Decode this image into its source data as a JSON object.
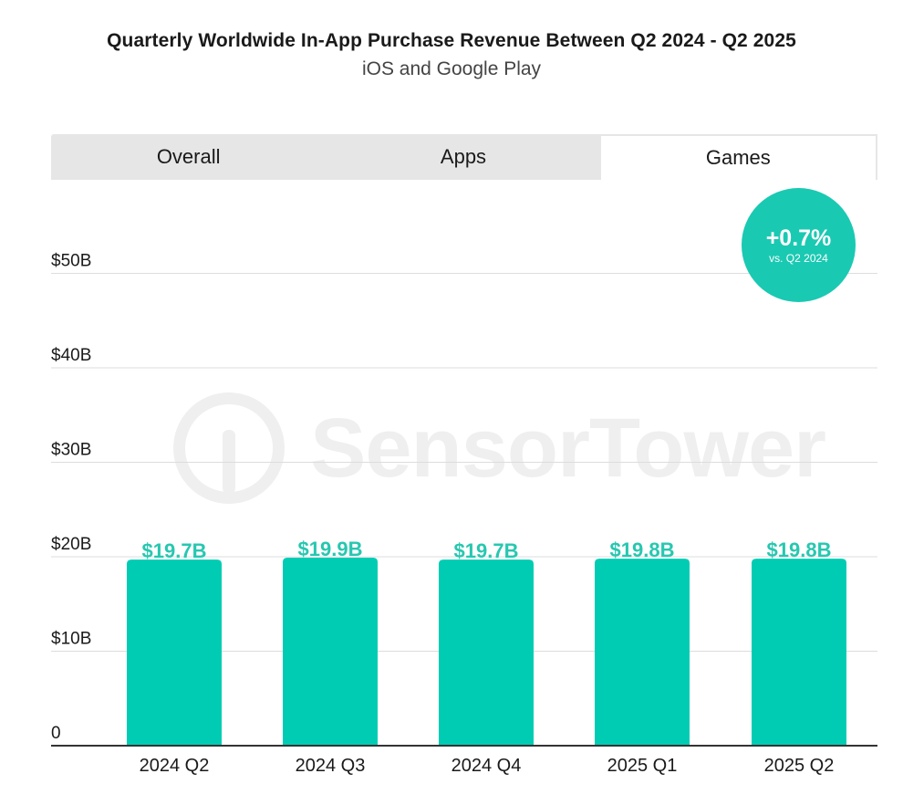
{
  "header": {
    "title": "Quarterly Worldwide In-App Purchase Revenue Between Q2 2024 - Q2 2025",
    "subtitle": "iOS and Google Play"
  },
  "tabs": [
    {
      "label": "Overall",
      "active": false
    },
    {
      "label": "Apps",
      "active": false
    },
    {
      "label": "Games",
      "active": true
    }
  ],
  "badge": {
    "value": "+0.7%",
    "caption": "vs. Q2 2024"
  },
  "watermark": {
    "text": "SensorTower"
  },
  "colors": {
    "bar": "#00ccb4",
    "badge": "#1ac9b2",
    "label": "#27c7b0",
    "grid": "#dddddd"
  },
  "chart_data": {
    "type": "bar",
    "title": "Quarterly Worldwide In-App Purchase Revenue Between Q2 2024 - Q2 2025",
    "subtitle": "iOS and Google Play",
    "categories": [
      "2024 Q2",
      "2024 Q3",
      "2024 Q4",
      "2025 Q1",
      "2025 Q2"
    ],
    "values": [
      19.7,
      19.9,
      19.7,
      19.8,
      19.8
    ],
    "data_labels": [
      "$19.7B",
      "$19.9B",
      "$19.7B",
      "$19.8B",
      "$19.8B"
    ],
    "yticks": [
      0,
      10,
      20,
      30,
      40,
      50
    ],
    "ytick_labels": [
      "0",
      "$10B",
      "$20B",
      "$30B",
      "$40B",
      "$50B"
    ],
    "ylim": [
      0,
      50
    ],
    "xlabel": "",
    "ylabel": "",
    "grid": true,
    "legend": "none"
  }
}
